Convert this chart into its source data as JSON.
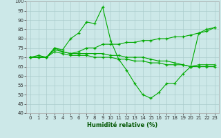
{
  "xlabel": "Humidité relative (%)",
  "background_color": "#cce8e8",
  "grid_color": "#aacccc",
  "line_color": "#00aa00",
  "xlim": [
    -0.5,
    23.5
  ],
  "ylim": [
    40,
    100
  ],
  "yticks": [
    40,
    45,
    50,
    55,
    60,
    65,
    70,
    75,
    80,
    85,
    90,
    95,
    100
  ],
  "xticks": [
    0,
    1,
    2,
    3,
    4,
    5,
    6,
    7,
    8,
    9,
    10,
    11,
    12,
    13,
    14,
    15,
    16,
    17,
    18,
    19,
    20,
    21,
    22,
    23
  ],
  "series": [
    {
      "x": [
        0,
        1,
        2,
        3,
        4,
        5,
        6,
        7,
        8,
        9,
        10,
        11,
        12,
        13,
        14,
        15,
        16,
        17,
        18,
        19,
        20,
        21,
        22,
        23
      ],
      "y": [
        70,
        71,
        70,
        75,
        74,
        80,
        83,
        89,
        88,
        97,
        79,
        69,
        63,
        56,
        50,
        48,
        51,
        56,
        56,
        61,
        65,
        83,
        85,
        86
      ]
    },
    {
      "x": [
        0,
        1,
        2,
        3,
        4,
        5,
        6,
        7,
        8,
        9,
        10,
        11,
        12,
        13,
        14,
        15,
        16,
        17,
        18,
        19,
        20,
        21,
        22,
        23
      ],
      "y": [
        70,
        70,
        70,
        75,
        73,
        72,
        73,
        75,
        75,
        77,
        77,
        77,
        78,
        78,
        79,
        79,
        80,
        80,
        81,
        81,
        82,
        83,
        84,
        86
      ]
    },
    {
      "x": [
        0,
        1,
        2,
        3,
        4,
        5,
        6,
        7,
        8,
        9,
        10,
        11,
        12,
        13,
        14,
        15,
        16,
        17,
        18,
        19,
        20,
        21,
        22,
        23
      ],
      "y": [
        70,
        70,
        70,
        74,
        73,
        72,
        72,
        72,
        72,
        72,
        71,
        71,
        70,
        70,
        70,
        69,
        68,
        68,
        67,
        66,
        65,
        65,
        65,
        65
      ]
    },
    {
      "x": [
        0,
        1,
        2,
        3,
        4,
        5,
        6,
        7,
        8,
        9,
        10,
        11,
        12,
        13,
        14,
        15,
        16,
        17,
        18,
        19,
        20,
        21,
        22,
        23
      ],
      "y": [
        70,
        70,
        70,
        73,
        72,
        71,
        71,
        71,
        70,
        70,
        70,
        69,
        69,
        68,
        68,
        67,
        67,
        66,
        66,
        66,
        65,
        66,
        66,
        66
      ]
    }
  ]
}
